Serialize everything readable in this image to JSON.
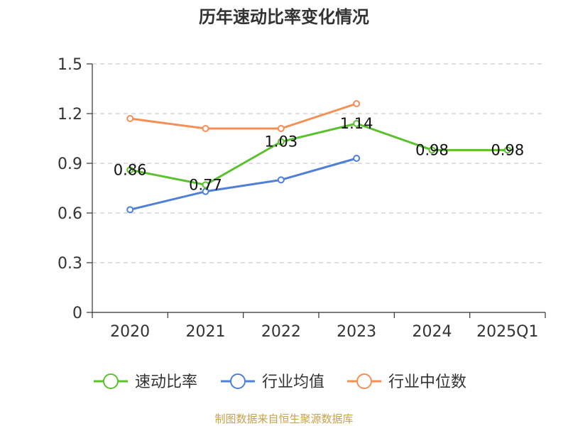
{
  "chart_data": {
    "type": "line",
    "title": "历年速动比率变化情况",
    "categories": [
      "2020",
      "2021",
      "2022",
      "2023",
      "2024",
      "2025Q1"
    ],
    "ylim": [
      0,
      1.5
    ],
    "yticks": [
      "0",
      "0.3",
      "0.6",
      "0.9",
      "1.2",
      "1.5"
    ],
    "grid": true,
    "legend_position": "bottom",
    "series": [
      {
        "name": "速动比率",
        "color": "#5cc12f",
        "values": [
          0.86,
          0.77,
          1.03,
          1.14,
          0.98,
          0.98
        ],
        "labels": [
          "0.86",
          "0.77",
          "1.03",
          "1.14",
          "0.98",
          "0.98"
        ]
      },
      {
        "name": "行业均值",
        "color": "#4f80d6",
        "values": [
          0.62,
          0.73,
          0.8,
          0.93,
          null,
          null
        ]
      },
      {
        "name": "行业中位数",
        "color": "#f58f55",
        "values": [
          1.17,
          1.11,
          1.11,
          1.26,
          null,
          null
        ]
      }
    ],
    "source": "制图数据来自恒生聚源数据库"
  }
}
